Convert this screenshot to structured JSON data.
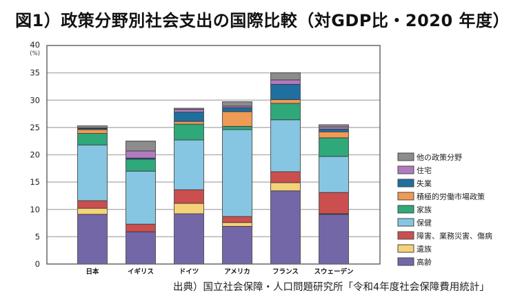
{
  "title": "図1）政策分野別社会支出の国際比較（対GDP比・2020 年度）",
  "source": "出典）国立社会保障・人口問題研究所「令和4年度社会保障費用統計」",
  "chart_data": {
    "type": "bar",
    "stacked": true,
    "title": "図1）政策分野別社会支出の国際比較（対GDP比・2020 年度）",
    "xlabel": "",
    "ylabel": "(%)",
    "ylim": [
      0,
      40
    ],
    "yticks": [
      0,
      5,
      10,
      15,
      20,
      25,
      30,
      35,
      40
    ],
    "grid": true,
    "legend_position": "right",
    "categories": [
      "日本",
      "イギリス",
      "ドイツ",
      "アメリカ",
      "フランス",
      "スウェーデン"
    ],
    "series": [
      {
        "name": "高齢",
        "color": "#7467a8",
        "values": [
          9.1,
          5.9,
          9.2,
          6.9,
          13.4,
          9.1
        ]
      },
      {
        "name": "遺族",
        "color": "#f5d27a",
        "values": [
          1.1,
          0.0,
          1.9,
          0.7,
          1.5,
          0.1
        ]
      },
      {
        "name": "障害、業務災害、傷病",
        "color": "#cb4f4f",
        "values": [
          1.4,
          1.4,
          2.5,
          1.1,
          2.0,
          3.9
        ]
      },
      {
        "name": "保健",
        "color": "#86c6e2",
        "values": [
          10.2,
          9.7,
          9.1,
          15.9,
          9.5,
          6.6
        ]
      },
      {
        "name": "家族",
        "color": "#2fa87a",
        "values": [
          2.1,
          2.2,
          2.9,
          0.6,
          3.0,
          3.4
        ]
      },
      {
        "name": "積極的労働市場政策",
        "color": "#ef9a55",
        "values": [
          0.7,
          0.0,
          0.5,
          2.7,
          0.7,
          1.1
        ]
      },
      {
        "name": "失業",
        "color": "#1f6fa0",
        "values": [
          0.2,
          0.2,
          1.7,
          0.7,
          2.8,
          0.5
        ]
      },
      {
        "name": "住宅",
        "color": "#b27bbf",
        "values": [
          0.1,
          1.3,
          0.5,
          0.3,
          0.8,
          0.4
        ]
      },
      {
        "name": "他の政策分野",
        "color": "#8c8c8c",
        "values": [
          0.4,
          1.8,
          0.2,
          0.8,
          1.3,
          0.4
        ]
      }
    ],
    "totals": [
      25.3,
      22.5,
      28.5,
      29.7,
      35.0,
      25.5
    ]
  }
}
